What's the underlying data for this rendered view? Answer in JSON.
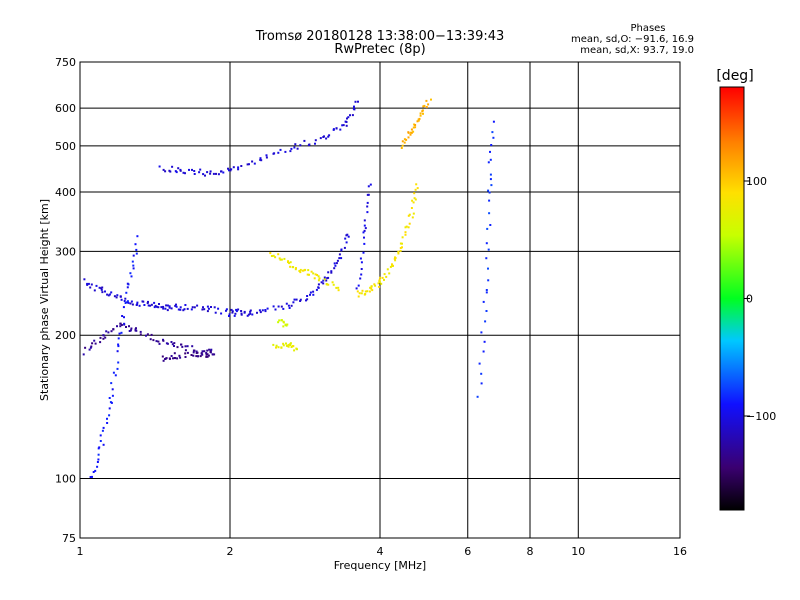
{
  "header": {
    "title": "Tromsø 20180128 13:38:00−13:39:43",
    "subtitle": "RwPretec (8p)"
  },
  "phase_box": {
    "title": "Phases",
    "line_o": "mean, sd,O: −91.6, 16.9",
    "line_x": "mean, sd,X:  93.7, 19.0"
  },
  "colorbar": {
    "unit": "[deg]",
    "tick_labels": [
      "100",
      "0",
      "−100"
    ],
    "tick_values": [
      100,
      0,
      -100
    ],
    "range": [
      -180,
      180
    ]
  },
  "chart_data": {
    "type": "scatter",
    "xlabel": "Frequency [MHz]",
    "ylabel": "Stationary phase Virtual Height [km]",
    "xscale": "log",
    "yscale": "log",
    "xlim": [
      1,
      16
    ],
    "ylim": [
      75,
      750
    ],
    "grid": true,
    "x_ticks": [
      1,
      2,
      4,
      6,
      8,
      10,
      16
    ],
    "x_tick_labels": [
      "1",
      "2",
      "4",
      "6",
      "8",
      "10",
      "16"
    ],
    "y_ticks": [
      75,
      100,
      200,
      300,
      400,
      500,
      600,
      750
    ],
    "y_tick_labels": [
      "75",
      "100",
      "200",
      "300",
      "400",
      "500",
      "600",
      "750"
    ],
    "traces": [
      {
        "x": [
          1.02,
          1.1,
          1.2,
          1.3,
          1.45,
          1.6,
          1.75,
          1.85
        ],
        "y": [
          185,
          200,
          210,
          205,
          195,
          190,
          185,
          185
        ],
        "phase": -130
      },
      {
        "x": [
          1.02,
          1.1,
          1.2,
          1.3,
          1.4,
          1.5,
          1.6,
          1.8,
          2.0,
          2.2
        ],
        "y": [
          260,
          250,
          240,
          235,
          232,
          230,
          230,
          228,
          225,
          225
        ],
        "phase": -105
      },
      {
        "x": [
          2.0,
          2.3,
          2.6,
          2.9,
          3.1,
          3.3,
          3.45
        ],
        "y": [
          222,
          225,
          232,
          245,
          262,
          290,
          330
        ],
        "phase": -105
      },
      {
        "x": [
          1.45,
          1.6,
          1.8,
          2.0,
          2.3,
          2.7,
          3.1,
          3.4,
          3.6
        ],
        "y": [
          450,
          445,
          440,
          445,
          470,
          500,
          525,
          560,
          620
        ],
        "phase": -105
      },
      {
        "x": [
          1.05,
          1.1,
          1.15,
          1.2,
          1.25,
          1.3
        ],
        "y": [
          100,
          120,
          150,
          200,
          260,
          320
        ],
        "phase": -90
      },
      {
        "x": [
          1.45,
          1.55,
          1.7,
          1.85
        ],
        "y": [
          180,
          182,
          184,
          183
        ],
        "phase": -135
      },
      {
        "x": [
          3.6,
          3.8,
          4.0,
          4.2,
          4.4,
          4.6,
          4.75
        ],
        "y": [
          245,
          250,
          260,
          280,
          310,
          360,
          420
        ],
        "phase": 85
      },
      {
        "x": [
          2.4,
          2.6,
          2.8,
          3.0,
          3.3
        ],
        "y": [
          300,
          285,
          275,
          265,
          250
        ],
        "phase": 80
      },
      {
        "x": [
          2.45,
          2.6,
          2.7
        ],
        "y": [
          190,
          192,
          188
        ],
        "phase": 75
      },
      {
        "x": [
          2.5,
          2.6
        ],
        "y": [
          215,
          210
        ],
        "phase": 60
      },
      {
        "x": [
          4.4,
          4.6,
          4.8,
          5.0
        ],
        "y": [
          500,
          540,
          580,
          630
        ],
        "phase": 110
      },
      {
        "x": [
          3.6,
          3.7,
          3.8
        ],
        "y": [
          250,
          330,
          420
        ],
        "phase": -100
      },
      {
        "x": [
          6.3,
          6.5,
          6.6,
          6.7
        ],
        "y": [
          150,
          250,
          400,
          560
        ],
        "phase": -80
      }
    ]
  }
}
